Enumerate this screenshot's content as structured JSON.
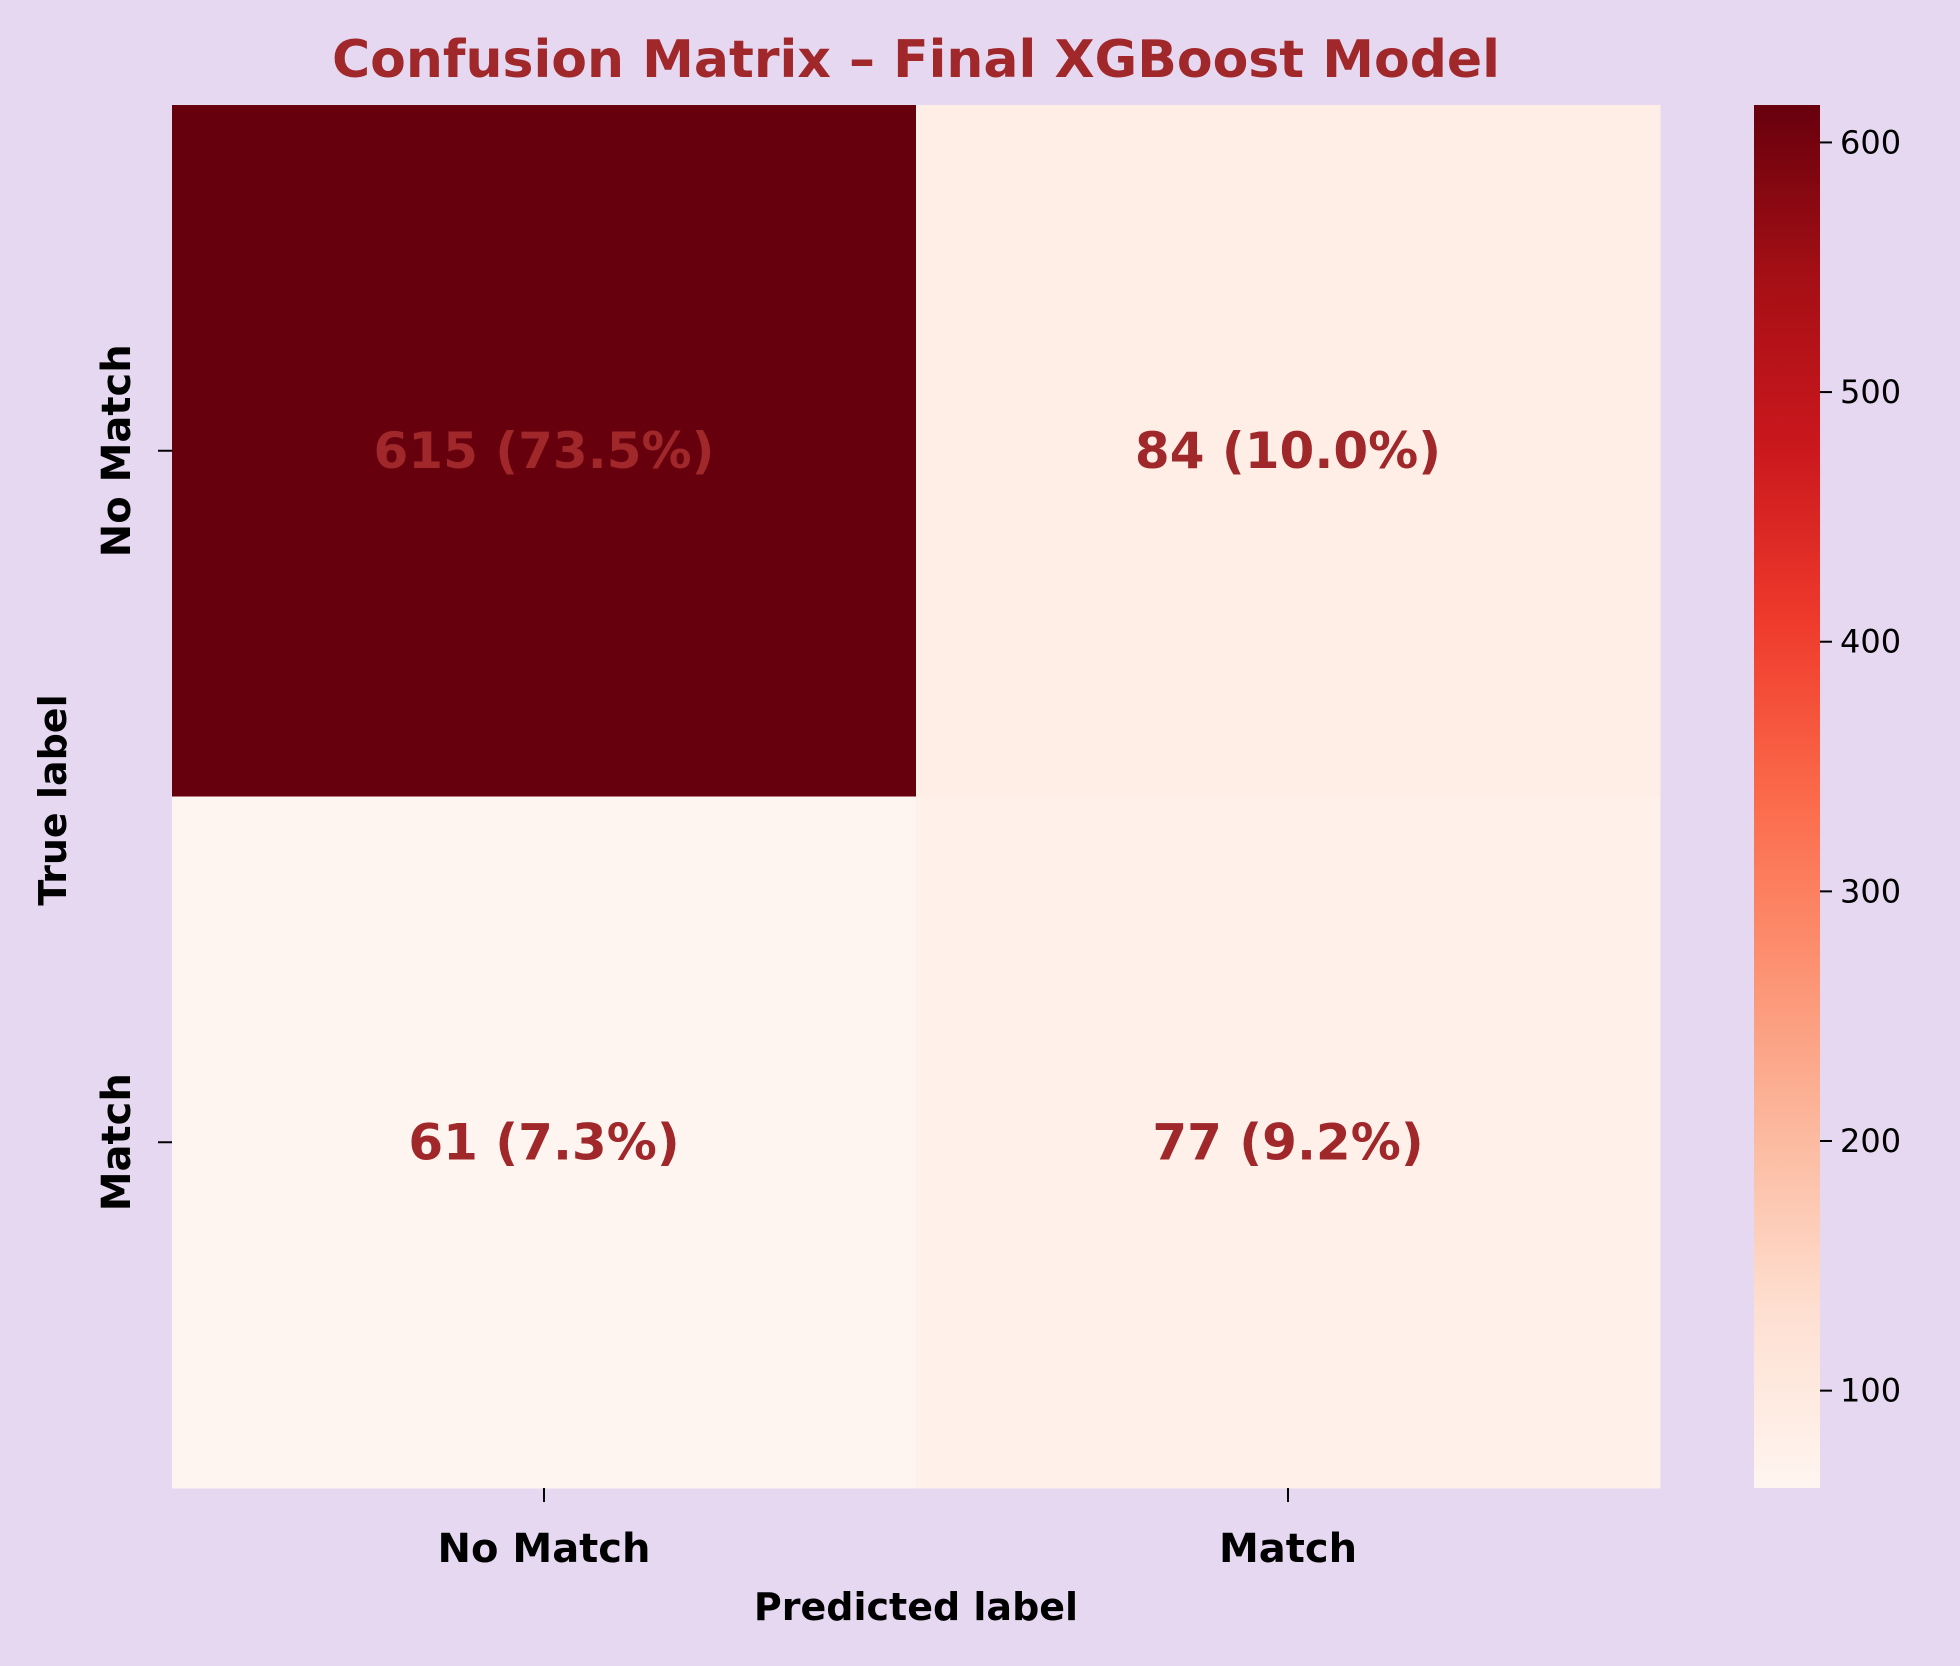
{
  "chart_data": {
    "type": "heatmap",
    "title": "Confusion Matrix – Final XGBoost Model",
    "xlabel": "Predicted label",
    "ylabel": "True label",
    "x_categories": [
      "No Match",
      "Match"
    ],
    "y_categories": [
      "No Match",
      "Match"
    ],
    "values": [
      [
        615,
        84
      ],
      [
        61,
        77
      ]
    ],
    "annotations": [
      [
        "615 (73.5%)",
        "84 (10.0%)"
      ],
      [
        "61 (7.3%)",
        "77 (9.2%)"
      ]
    ],
    "colorbar": {
      "range": [
        61,
        615
      ],
      "ticks": [
        100,
        200,
        300,
        400,
        500,
        600
      ],
      "tick_labels": [
        "100",
        "200",
        "300",
        "400",
        "500",
        "600"
      ]
    },
    "colormap": "Reds",
    "grid": false
  },
  "colors": {
    "background": "#e6d8f1",
    "title": "#a0272a",
    "annotation": "#a0272a",
    "axis_text": "#000000"
  }
}
